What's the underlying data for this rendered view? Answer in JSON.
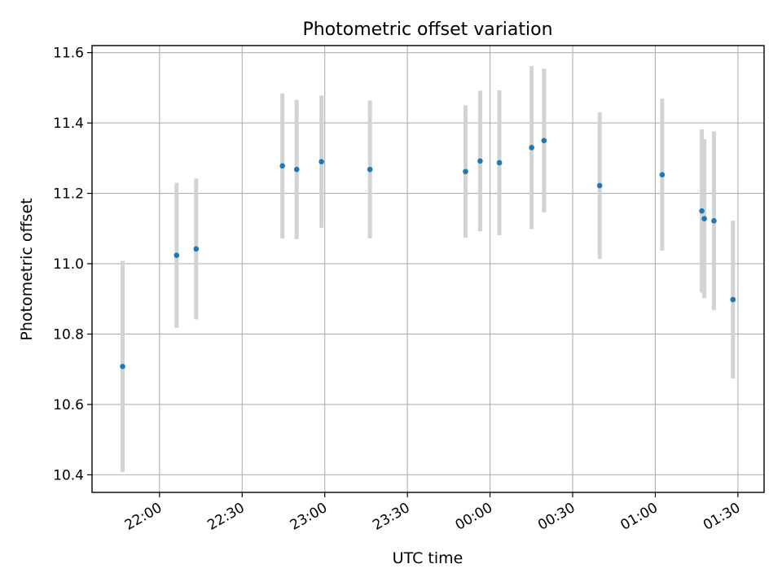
{
  "chart_data": {
    "type": "scatter",
    "title": "Photometric offset variation",
    "xlabel": "UTC time",
    "ylabel": "Photometric offset",
    "x_tick_labels": [
      "22:00",
      "22:30",
      "23:00",
      "23:30",
      "00:00",
      "00:30",
      "01:00",
      "01:30"
    ],
    "x_tick_minutes": [
      0,
      30,
      60,
      90,
      120,
      150,
      180,
      210
    ],
    "xlim_minutes": [
      -24.5,
      219.5
    ],
    "y_tick_labels": [
      "10.4",
      "10.6",
      "10.8",
      "11.0",
      "11.2",
      "11.4",
      "11.6"
    ],
    "y_ticks": [
      10.4,
      10.6,
      10.8,
      11.0,
      11.2,
      11.4,
      11.6
    ],
    "ylim": [
      10.35,
      11.62
    ],
    "grid": true,
    "point_color": "#1f77b4",
    "errorbar_color": "#d3d3d3",
    "points": [
      {
        "t": -13.4,
        "y": 10.708,
        "err": 0.3
      },
      {
        "t": 6.2,
        "y": 11.024,
        "err": 0.206
      },
      {
        "t": 13.3,
        "y": 11.042,
        "err": 0.2
      },
      {
        "t": 44.6,
        "y": 11.278,
        "err": 0.206
      },
      {
        "t": 49.8,
        "y": 11.268,
        "err": 0.198
      },
      {
        "t": 58.8,
        "y": 11.29,
        "err": 0.188
      },
      {
        "t": 76.4,
        "y": 11.268,
        "err": 0.196
      },
      {
        "t": 111.1,
        "y": 11.262,
        "err": 0.188
      },
      {
        "t": 116.4,
        "y": 11.292,
        "err": 0.2
      },
      {
        "t": 123.4,
        "y": 11.287,
        "err": 0.206
      },
      {
        "t": 135.1,
        "y": 11.33,
        "err": 0.232
      },
      {
        "t": 139.6,
        "y": 11.35,
        "err": 0.204
      },
      {
        "t": 159.8,
        "y": 11.222,
        "err": 0.208
      },
      {
        "t": 182.5,
        "y": 11.253,
        "err": 0.216
      },
      {
        "t": 196.9,
        "y": 11.15,
        "err": 0.232
      },
      {
        "t": 197.8,
        "y": 11.128,
        "err": 0.226
      },
      {
        "t": 201.3,
        "y": 11.122,
        "err": 0.254
      },
      {
        "t": 208.2,
        "y": 10.898,
        "err": 0.224
      }
    ]
  }
}
